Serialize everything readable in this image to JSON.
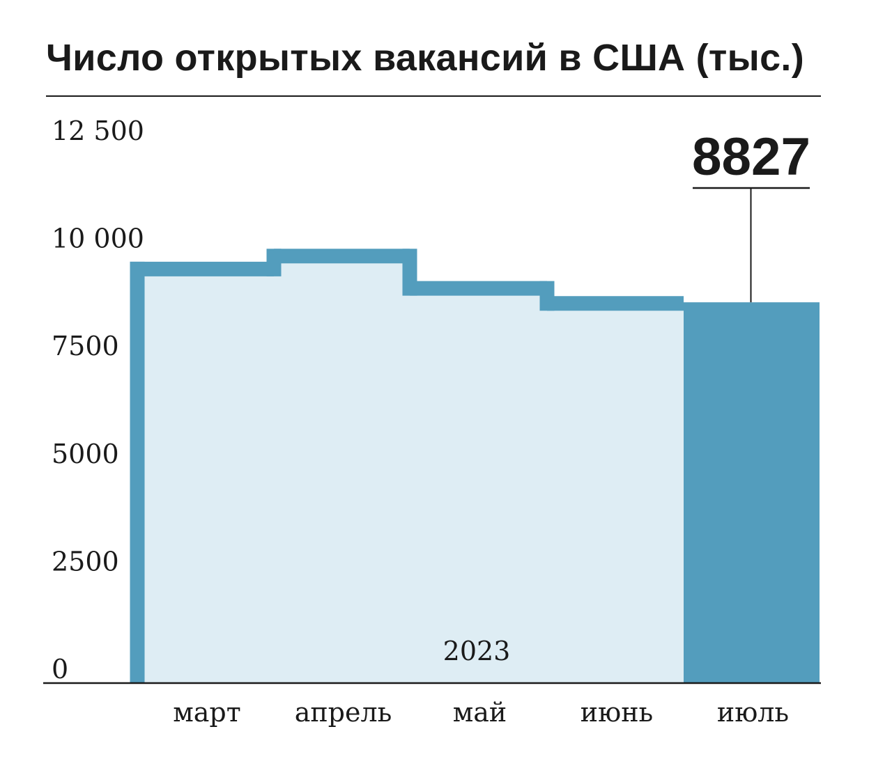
{
  "chart_data": {
    "type": "bar",
    "title": "Число открытых вакансий в США (тыс.)",
    "categories": [
      "март",
      "апрель",
      "май",
      "июнь",
      "июль"
    ],
    "values": [
      9600,
      9900,
      9150,
      8800,
      8827
    ],
    "highlight_index": 4,
    "highlight_label": "8827",
    "year_label": "2023",
    "ylim": [
      0,
      12500
    ],
    "yticks": [
      0,
      2500,
      5000,
      7500,
      10000,
      12500
    ],
    "ytick_labels": [
      "0",
      "2500",
      "5000",
      "7500",
      "10 000",
      "12 500"
    ],
    "grid": false,
    "xlabel": "",
    "ylabel": ""
  },
  "colors": {
    "accent": "#539dbd",
    "fill_light": "#deedf4",
    "text": "#1a1a1a",
    "axis": "#1a1a1a"
  }
}
